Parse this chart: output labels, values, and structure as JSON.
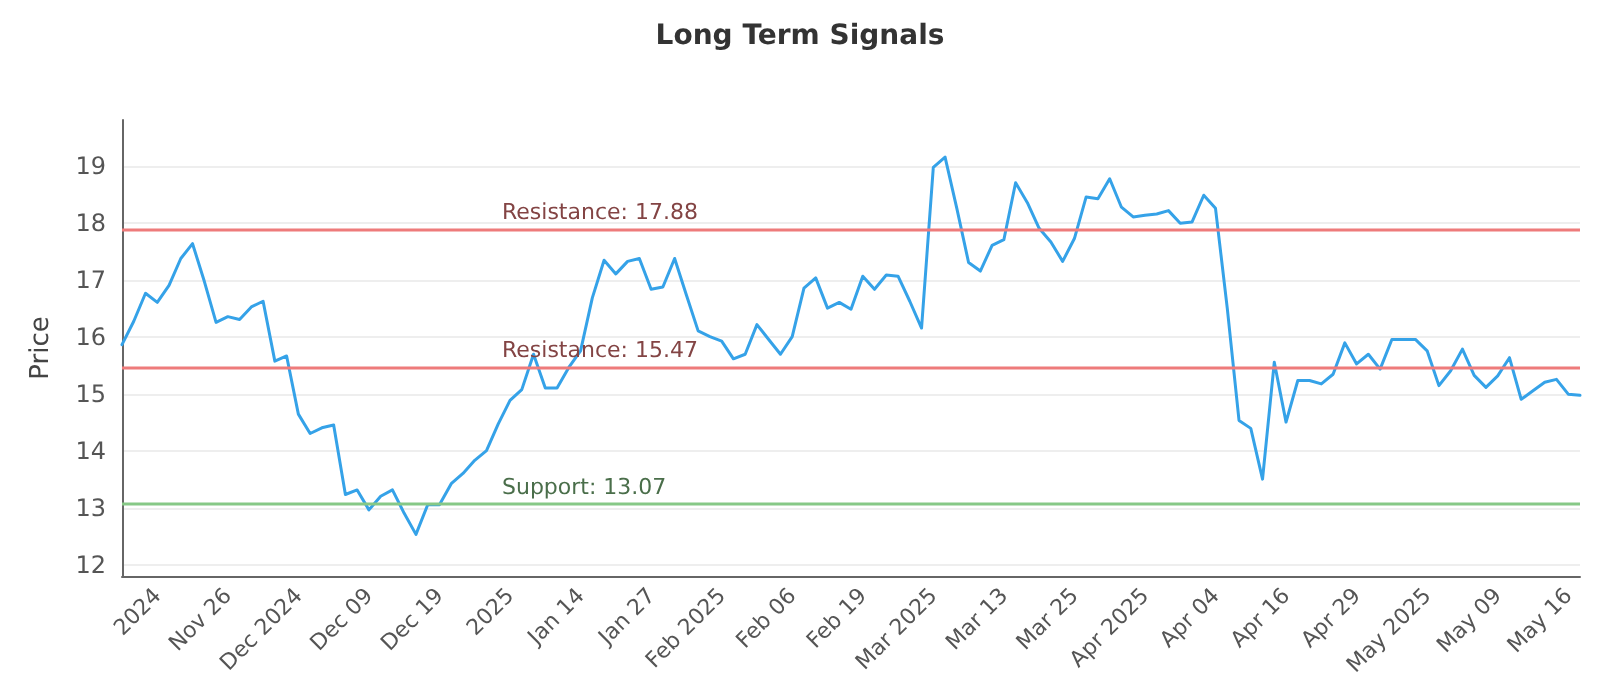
{
  "chart_data": {
    "type": "line",
    "title": "Long Term Signals",
    "ylabel": "Price",
    "categories": [
      null,
      null,
      null,
      "2024",
      null,
      null,
      null,
      null,
      null,
      "Nov 26",
      null,
      null,
      null,
      null,
      null,
      "Dec 2024",
      null,
      null,
      null,
      null,
      null,
      "Dec 09",
      null,
      null,
      null,
      null,
      null,
      "Dec 19",
      null,
      null,
      null,
      null,
      null,
      "2025",
      null,
      null,
      null,
      null,
      null,
      "Jan 14",
      null,
      null,
      null,
      null,
      null,
      "Jan 27",
      null,
      null,
      null,
      null,
      null,
      "Feb 2025",
      null,
      null,
      null,
      null,
      null,
      "Feb 06",
      null,
      null,
      null,
      null,
      null,
      "Feb 19",
      null,
      null,
      null,
      null,
      null,
      "Mar 2025",
      null,
      null,
      null,
      null,
      null,
      "Mar 13",
      null,
      null,
      null,
      null,
      null,
      "Mar 25",
      null,
      null,
      null,
      null,
      null,
      "Apr 2025",
      null,
      null,
      null,
      null,
      null,
      "Apr 04",
      null,
      null,
      null,
      null,
      null,
      "Apr 16",
      null,
      null,
      null,
      null,
      null,
      "Apr 29",
      null,
      null,
      null,
      null,
      null,
      "May 2025",
      null,
      null,
      null,
      null,
      null,
      "May 09",
      null,
      null,
      null,
      null,
      null,
      "May 16",
      null
    ],
    "series": [
      {
        "color": "#35a2e8",
        "values": [
          15.86,
          16.27,
          16.76,
          16.6,
          16.9,
          17.37,
          17.63,
          16.97,
          16.25,
          16.35,
          16.3,
          16.52,
          16.62,
          15.57,
          15.66,
          14.64,
          14.3,
          14.4,
          14.45,
          13.23,
          13.31,
          12.96,
          13.2,
          13.31,
          12.9,
          12.53,
          13.05,
          13.05,
          13.42,
          13.6,
          13.83,
          14.0,
          14.47,
          14.88,
          15.07,
          15.69,
          15.1,
          15.1,
          15.46,
          15.75,
          16.68,
          17.34,
          17.1,
          17.32,
          17.37,
          16.83,
          16.87,
          17.37,
          16.73,
          16.1,
          16.0,
          15.92,
          15.61,
          15.69,
          16.21,
          15.95,
          15.69,
          16.0,
          16.85,
          17.03,
          16.5,
          16.6,
          16.48,
          17.06,
          16.83,
          17.08,
          17.06,
          16.62,
          16.15,
          18.97,
          19.15,
          18.25,
          17.3,
          17.15,
          17.6,
          17.7,
          18.7,
          18.35,
          17.9,
          17.66,
          17.32,
          17.72,
          18.45,
          18.42,
          18.77,
          18.27,
          18.1,
          18.13,
          18.15,
          18.21,
          17.99,
          18.01,
          18.48,
          18.25,
          16.5,
          14.53,
          14.39,
          13.5,
          15.55,
          14.5,
          15.23,
          15.23,
          15.17,
          15.34,
          15.89,
          15.52,
          15.69,
          15.43,
          15.95,
          15.95,
          15.95,
          15.75,
          15.14,
          15.4,
          15.78,
          15.32,
          15.11,
          15.31,
          15.63,
          14.9,
          15.05,
          15.2,
          15.25,
          14.99,
          14.97
        ]
      }
    ],
    "ylim": [
      11.8,
      19.8
    ],
    "yticks": [
      12,
      13,
      14,
      15,
      16,
      17,
      18,
      19
    ],
    "grid": "y",
    "marker": "none",
    "line_style": "solid",
    "ref_lines": [
      {
        "axis": "y",
        "value": 17.88,
        "label": "Resistance: 17.88",
        "color": "#ee7b7b"
      },
      {
        "axis": "y",
        "value": 15.47,
        "label": "Resistance: 15.47",
        "color": "#ee7b7b"
      },
      {
        "axis": "y",
        "value": 13.07,
        "label": "Support: 13.07",
        "color": "#86c886"
      }
    ]
  }
}
